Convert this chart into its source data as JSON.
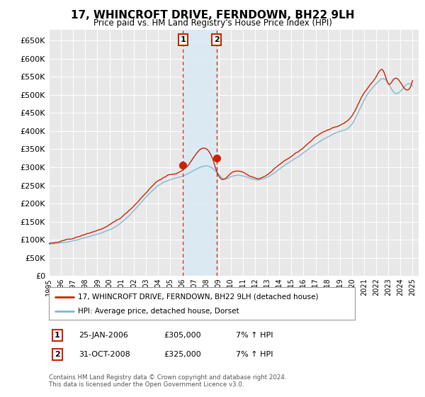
{
  "title": "17, WHINCROFT DRIVE, FERNDOWN, BH22 9LH",
  "subtitle": "Price paid vs. HM Land Registry's House Price Index (HPI)",
  "legend_line1": "17, WHINCROFT DRIVE, FERNDOWN, BH22 9LH (detached house)",
  "legend_line2": "HPI: Average price, detached house, Dorset",
  "annotation1_date": "25-JAN-2006",
  "annotation1_price": "£305,000",
  "annotation1_hpi": "7% ↑ HPI",
  "annotation2_date": "31-OCT-2008",
  "annotation2_price": "£325,000",
  "annotation2_hpi": "7% ↑ HPI",
  "footer": "Contains HM Land Registry data © Crown copyright and database right 2024.\nThis data is licensed under the Open Government Licence v3.0.",
  "hpi_color": "#7fb8d8",
  "price_color": "#cc2200",
  "marker1_year": 2006.07,
  "marker2_year": 2008.83,
  "marker1_value": 305000,
  "marker2_value": 325000,
  "ylim": [
    0,
    680000
  ],
  "yticks": [
    0,
    50000,
    100000,
    150000,
    200000,
    250000,
    300000,
    350000,
    400000,
    450000,
    500000,
    550000,
    600000,
    650000
  ],
  "plot_bg_color": "#e8e8e8",
  "shade_color": "#daeaf5"
}
